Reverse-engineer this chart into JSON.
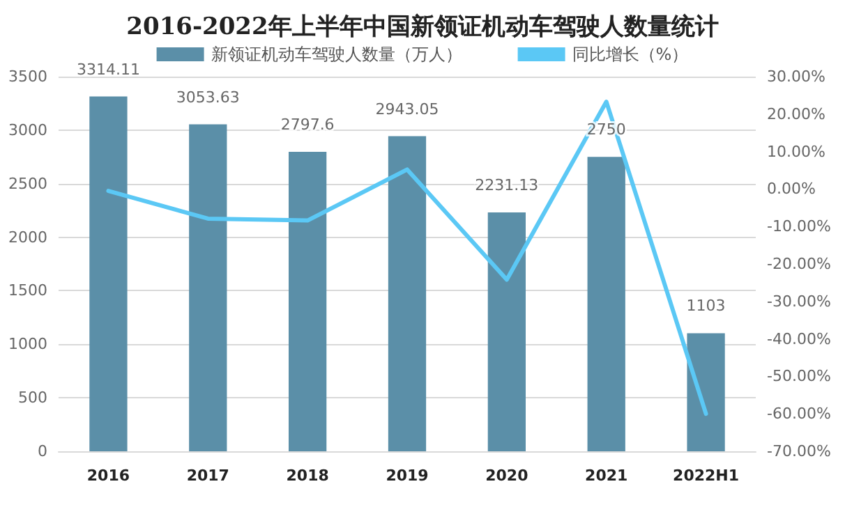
{
  "chart_data": {
    "type": "bar",
    "title": "2016-2022年上半年中国新领证机动车驾驶人数量统计",
    "categories": [
      "2016",
      "2017",
      "2018",
      "2019",
      "2020",
      "2021",
      "2022H1"
    ],
    "series": [
      {
        "name": "新领证机动车驾驶人数量（万人）",
        "color": "#5b8fa8",
        "values": [
          3314.11,
          3053.63,
          2797.6,
          2943.05,
          2231.13,
          2750,
          1103
        ],
        "value_labels": [
          "3314.11",
          "3053.63",
          "2797.6",
          "2943.05",
          "2231.13",
          "2750",
          "1103"
        ]
      },
      {
        "name": "同比增长（%）",
        "type": "line",
        "axis": "y2",
        "color": "#5bc8f5",
        "values": [
          -0.5,
          -7.9,
          -8.4,
          5.2,
          -24.2,
          23.3,
          -60
        ]
      }
    ],
    "ylim": [
      0,
      3500
    ],
    "yticks": [
      0,
      500,
      1000,
      1500,
      2000,
      2500,
      3000,
      3500
    ],
    "y2lim": [
      -70,
      30
    ],
    "y2ticks": [
      {
        "value": -70,
        "label": "-70.00%"
      },
      {
        "value": -60,
        "label": "-60.00%"
      },
      {
        "value": -50,
        "label": "-50.00%"
      },
      {
        "value": -40,
        "label": "-40.00%"
      },
      {
        "value": -30,
        "label": "-30.00%"
      },
      {
        "value": -20,
        "label": "-20.00%"
      },
      {
        "value": -10,
        "label": "-10.00%"
      },
      {
        "value": 0,
        "label": "0.00%"
      },
      {
        "value": 10,
        "label": "10.00%"
      },
      {
        "value": 20,
        "label": "20.00%"
      },
      {
        "value": 30,
        "label": "30.00%"
      }
    ],
    "grid": "y",
    "legend": "top",
    "marker": "none"
  }
}
